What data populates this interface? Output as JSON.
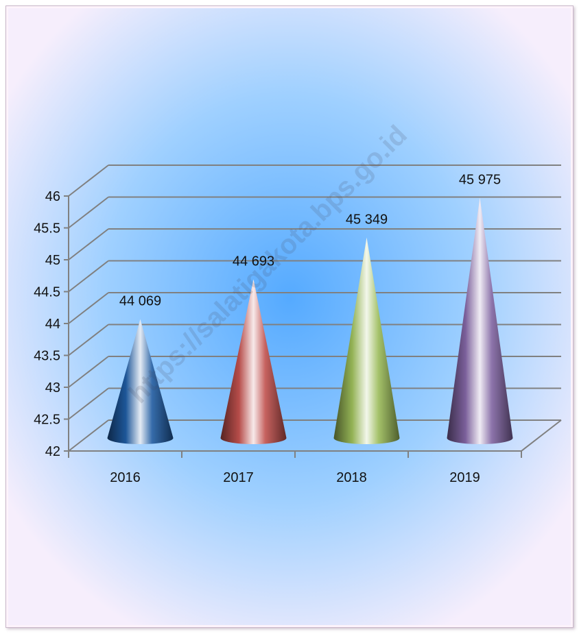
{
  "chart_data": {
    "type": "bar",
    "bar_shape": "cone-3d",
    "categories": [
      "2016",
      "2017",
      "2018",
      "2019"
    ],
    "series": [
      {
        "values": [
          44.069,
          44.693,
          45.349,
          45.975
        ],
        "colors": [
          "#1f5aa0",
          "#c0504d",
          "#9bbb59",
          "#8064a2"
        ]
      }
    ],
    "data_labels": [
      "44 069",
      "44 693",
      "45 349",
      "45 975"
    ],
    "ylim": [
      42,
      46
    ],
    "y_ticks": [
      "42",
      "42.5",
      "43",
      "43.5",
      "44",
      "44.5",
      "45",
      "45.5",
      "46"
    ],
    "grid": true,
    "title": "",
    "xlabel": "",
    "ylabel": ""
  },
  "watermark": "https://salatigakota.bps.go.id",
  "colors": {
    "frame_background": "#fdf3fb",
    "plot_center": "#55aaff",
    "gridline": "#808080"
  }
}
